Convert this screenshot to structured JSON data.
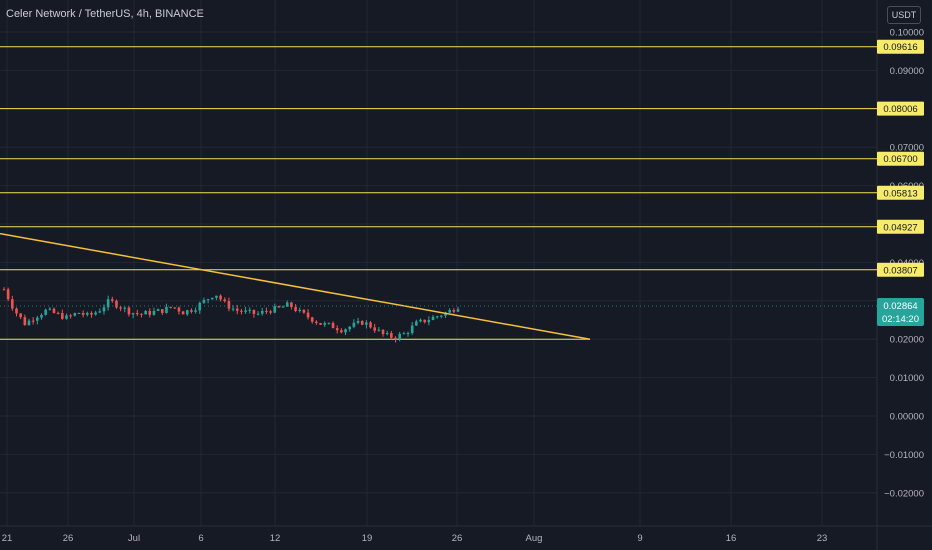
{
  "header": {
    "title": "Celer Network / TetherUS, 4h, BINANCE",
    "currency_badge": "USDT"
  },
  "colors": {
    "background": "#161a25",
    "grid": "#232734",
    "level": "#f2e250",
    "trend": "#f5c03a",
    "up": "#26a69a",
    "down": "#ef5350",
    "label_bg": "#f7eb6b",
    "price_bg": "#26a69a"
  },
  "chart_data": {
    "type": "candlestick",
    "y_ticks": [
      "0.10000",
      "0.09000",
      "0.08000",
      "0.07000",
      "0.06000",
      "0.05000",
      "0.04000",
      "0.03000",
      "0.02000",
      "0.01000",
      "0.00000",
      "−0.01000",
      "−0.02000"
    ],
    "y_tick_values": [
      0.1,
      0.09,
      0.08,
      0.07,
      0.06,
      0.05,
      0.04,
      0.03,
      0.02,
      0.01,
      0.0,
      -0.01,
      -0.02
    ],
    "x_ticks": [
      "21",
      "26",
      "Jul",
      "6",
      "12",
      "19",
      "26",
      "Aug",
      "9",
      "16",
      "23"
    ],
    "ylim": [
      -0.025,
      0.105
    ],
    "horizontal_levels": [
      {
        "value": 0.09616,
        "label": "0.09616"
      },
      {
        "value": 0.08006,
        "label": "0.08006"
      },
      {
        "value": 0.067,
        "label": "0.06700"
      },
      {
        "value": 0.05813,
        "label": "0.05813"
      },
      {
        "value": 0.04927,
        "label": "0.04927"
      },
      {
        "value": 0.03807,
        "label": "0.03807"
      }
    ],
    "support_level": 0.02,
    "trendline": {
      "start": 0.0475,
      "end": 0.02
    },
    "current_price": "0.02864",
    "countdown": "02:14:20",
    "price_path": [
      0.033,
      0.0275,
      0.024,
      0.026,
      0.0275,
      0.0265,
      0.0255,
      0.027,
      0.026,
      0.0275,
      0.03,
      0.0285,
      0.027,
      0.0265,
      0.027,
      0.0275,
      0.0285,
      0.027,
      0.028,
      0.03,
      0.032,
      0.029,
      0.0275,
      0.027,
      0.0265,
      0.0275,
      0.028,
      0.029,
      0.027,
      0.0255,
      0.024,
      0.0235,
      0.0225,
      0.0235,
      0.0245,
      0.023,
      0.021,
      0.0205,
      0.0215,
      0.024,
      0.025,
      0.026,
      0.027,
      0.0286
    ]
  }
}
